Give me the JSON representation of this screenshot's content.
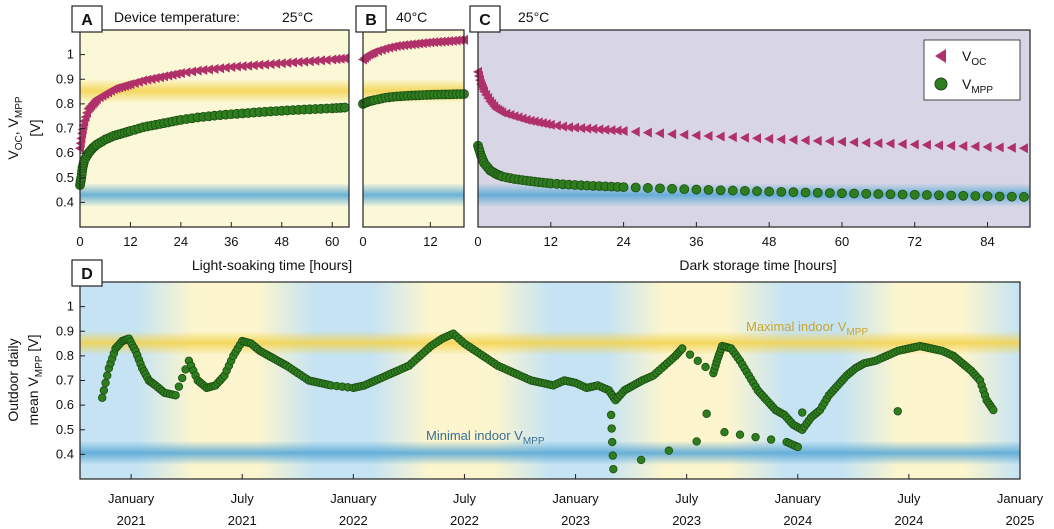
{
  "chart_data": [
    {
      "panel": "A",
      "type": "scatter",
      "title": "Device temperature:",
      "temperature": "25°C",
      "xlabel": "Light-soaking time [hours]",
      "ylabel": "V_OC, V_MPP [V]",
      "xlim": [
        0,
        64
      ],
      "ylim": [
        0.3,
        1.1
      ],
      "xticks": [
        "0",
        "12",
        "24",
        "36",
        "48",
        "60"
      ],
      "yticks": [
        "0.4",
        "0.5",
        "0.6",
        "0.7",
        "0.8",
        "0.9",
        "1"
      ],
      "series": [
        {
          "name": "V_OC",
          "color": "#b0306a",
          "marker": "triangle-left",
          "x": [
            0,
            0.5,
            1,
            2,
            3,
            4,
            6,
            8,
            10,
            12,
            15,
            18,
            21,
            24,
            28,
            32,
            36,
            40,
            44,
            48,
            52,
            56,
            60,
            63
          ],
          "y": [
            0.62,
            0.68,
            0.73,
            0.78,
            0.8,
            0.82,
            0.84,
            0.86,
            0.87,
            0.88,
            0.895,
            0.905,
            0.915,
            0.925,
            0.935,
            0.942,
            0.95,
            0.955,
            0.96,
            0.965,
            0.97,
            0.975,
            0.98,
            0.985
          ]
        },
        {
          "name": "V_MPP",
          "color": "#2e7d1e",
          "marker": "circle",
          "x": [
            0,
            0.3,
            0.6,
            1,
            2,
            3,
            4,
            6,
            8,
            10,
            12,
            15,
            18,
            21,
            24,
            28,
            32,
            36,
            40,
            44,
            48,
            52,
            56,
            60,
            63
          ],
          "y": [
            0.47,
            0.5,
            0.54,
            0.57,
            0.6,
            0.62,
            0.635,
            0.655,
            0.67,
            0.68,
            0.69,
            0.705,
            0.715,
            0.725,
            0.735,
            0.745,
            0.752,
            0.758,
            0.763,
            0.768,
            0.772,
            0.776,
            0.779,
            0.782,
            0.785
          ]
        }
      ],
      "bands": [
        {
          "name": "Maximal indoor V_MPP",
          "value": 0.85,
          "color": "#f3d24a"
        },
        {
          "name": "Minimal indoor V_MPP",
          "value": 0.415,
          "color": "#5aa9d6"
        }
      ]
    },
    {
      "panel": "B",
      "type": "scatter",
      "temperature": "40°C",
      "xlim": [
        0,
        18
      ],
      "ylim": [
        0.3,
        1.1
      ],
      "xticks": [
        "0",
        "12"
      ],
      "series": [
        {
          "name": "V_OC",
          "color": "#b0306a",
          "marker": "triangle-left",
          "x": [
            0,
            1,
            2,
            4,
            6,
            8,
            10,
            12,
            14,
            16,
            18
          ],
          "y": [
            0.98,
            1.0,
            1.01,
            1.025,
            1.035,
            1.04,
            1.045,
            1.05,
            1.053,
            1.056,
            1.06
          ]
        },
        {
          "name": "V_MPP",
          "color": "#2e7d1e",
          "marker": "circle",
          "x": [
            0,
            1,
            2,
            4,
            6,
            8,
            10,
            12,
            14,
            16,
            18
          ],
          "y": [
            0.8,
            0.81,
            0.815,
            0.825,
            0.83,
            0.833,
            0.835,
            0.837,
            0.838,
            0.839,
            0.84
          ]
        }
      ]
    },
    {
      "panel": "C",
      "type": "scatter",
      "temperature": "25°C",
      "xlabel": "Dark storage time [hours]",
      "xlim": [
        0,
        91
      ],
      "ylim": [
        0.3,
        1.1
      ],
      "xticks": [
        "0",
        "12",
        "24",
        "36",
        "48",
        "60",
        "72",
        "84"
      ],
      "legend": {
        "placement": "top-right",
        "entries": [
          "V_OC",
          "V_MPP"
        ]
      },
      "series": [
        {
          "name": "V_OC",
          "color": "#b0306a",
          "marker": "triangle-left",
          "x": [
            0,
            0.5,
            1,
            2,
            3,
            4,
            6,
            8,
            10,
            12,
            15,
            18,
            21,
            24,
            30,
            36,
            42,
            48,
            54,
            60,
            66,
            72,
            78,
            84,
            90
          ],
          "y": [
            0.93,
            0.88,
            0.85,
            0.81,
            0.78,
            0.765,
            0.75,
            0.735,
            0.725,
            0.715,
            0.705,
            0.7,
            0.695,
            0.69,
            0.68,
            0.672,
            0.665,
            0.658,
            0.652,
            0.646,
            0.64,
            0.635,
            0.63,
            0.625,
            0.62
          ]
        },
        {
          "name": "V_MPP",
          "color": "#2e7d1e",
          "marker": "circle",
          "x": [
            0,
            0.5,
            1,
            2,
            3,
            4,
            6,
            8,
            10,
            12,
            15,
            18,
            21,
            24,
            30,
            36,
            42,
            48,
            54,
            60,
            66,
            72,
            78,
            84,
            90
          ],
          "y": [
            0.63,
            0.59,
            0.56,
            0.53,
            0.515,
            0.505,
            0.495,
            0.488,
            0.482,
            0.477,
            0.472,
            0.468,
            0.465,
            0.462,
            0.457,
            0.452,
            0.448,
            0.444,
            0.44,
            0.437,
            0.434,
            0.431,
            0.428,
            0.425,
            0.422
          ]
        }
      ]
    },
    {
      "panel": "D",
      "type": "scatter",
      "ylabel": "Outdoor daily mean V_MPP [V]",
      "xlim": [
        2020.77,
        2025.0
      ],
      "ylim": [
        0.3,
        1.1
      ],
      "yticks": [
        "0.4",
        "0.5",
        "0.6",
        "0.7",
        "0.8",
        "0.9",
        "1"
      ],
      "xticks_month": [
        "January",
        "July",
        "January",
        "July",
        "January",
        "July",
        "January",
        "July",
        "January"
      ],
      "xticks_year": [
        "2021",
        "2021",
        "2022",
        "2022",
        "2023",
        "2023",
        "2024",
        "2024",
        "2025"
      ],
      "series": [
        {
          "name": "V_MPP",
          "color": "#2e7d1e",
          "marker": "circle",
          "x": [
            2020.87,
            2020.9,
            2020.93,
            2020.96,
            2020.99,
            2021.02,
            2021.05,
            2021.08,
            2021.11,
            2021.15,
            2021.2,
            2021.26,
            2021.3,
            2021.34,
            2021.38,
            2021.42,
            2021.46,
            2021.5,
            2021.54,
            2021.58,
            2021.62,
            2021.66,
            2021.7,
            2021.75,
            2021.8,
            2021.85,
            2021.9,
            2022.0,
            2022.05,
            2022.1,
            2022.15,
            2022.2,
            2022.25,
            2022.3,
            2022.35,
            2022.4,
            2022.45,
            2022.5,
            2022.55,
            2022.6,
            2022.65,
            2022.7,
            2022.75,
            2022.8,
            2022.85,
            2022.9,
            2022.95,
            2023.0,
            2023.05,
            2023.1,
            2023.15,
            2023.18,
            2023.22,
            2023.26,
            2023.3,
            2023.35,
            2023.4,
            2023.45,
            2023.48,
            2023.62,
            2023.64,
            2023.66,
            2023.7,
            2023.74,
            2023.78,
            2023.82,
            2023.86,
            2023.9,
            2023.94,
            2023.98,
            2024.02,
            2024.06,
            2024.1,
            2024.14,
            2024.18,
            2024.22,
            2024.26,
            2024.3,
            2024.35,
            2024.4,
            2024.45,
            2024.5,
            2024.55,
            2024.6,
            2024.65,
            2024.7,
            2024.74,
            2024.78,
            2024.82,
            2024.85,
            2024.88,
            2023.16,
            2023.17,
            2023.67,
            2023.95,
            2024.0
          ],
          "y": [
            0.63,
            0.75,
            0.83,
            0.86,
            0.87,
            0.82,
            0.75,
            0.7,
            0.68,
            0.65,
            0.64,
            0.78,
            0.7,
            0.67,
            0.68,
            0.72,
            0.8,
            0.86,
            0.85,
            0.82,
            0.8,
            0.78,
            0.76,
            0.73,
            0.7,
            0.69,
            0.68,
            0.67,
            0.68,
            0.7,
            0.72,
            0.74,
            0.76,
            0.8,
            0.84,
            0.87,
            0.89,
            0.85,
            0.82,
            0.79,
            0.76,
            0.74,
            0.72,
            0.7,
            0.69,
            0.68,
            0.7,
            0.69,
            0.67,
            0.68,
            0.66,
            0.62,
            0.66,
            0.68,
            0.7,
            0.72,
            0.76,
            0.8,
            0.83,
            0.73,
            0.79,
            0.84,
            0.83,
            0.78,
            0.72,
            0.66,
            0.62,
            0.58,
            0.56,
            0.52,
            0.5,
            0.55,
            0.58,
            0.64,
            0.68,
            0.72,
            0.75,
            0.77,
            0.78,
            0.8,
            0.82,
            0.83,
            0.84,
            0.83,
            0.82,
            0.8,
            0.77,
            0.74,
            0.7,
            0.62,
            0.58,
            0.56,
            0.34,
            0.49,
            0.45,
            0.43
          ]
        }
      ],
      "bands": [
        {
          "name": "Maximal indoor V_MPP",
          "value": 0.85,
          "color": "#f3d24a"
        },
        {
          "name": "Minimal indoor V_MPP",
          "value": 0.415,
          "color": "#5aa9d6"
        }
      ]
    }
  ],
  "labels": {
    "panel_a": "A",
    "panel_b": "B",
    "panel_c": "C",
    "panel_d": "D",
    "device_temperature": "Device temperature:",
    "temp_a": "25°C",
    "temp_b": "40°C",
    "temp_c": "25°C",
    "xlabel_ab": "Light-soaking time [hours]",
    "xlabel_c": "Dark storage time [hours]",
    "ylabel_top_main": "V",
    "ylabel_top_sub1": "OC",
    "ylabel_top_sep": ", V",
    "ylabel_top_sub2": "MPP",
    "ylabel_top_unit": "[V]",
    "ylabel_d_line1": "Outdoor daily",
    "ylabel_d_main": "mean V",
    "ylabel_d_sub": "MPP",
    "ylabel_d_unit": " [V]",
    "legend_voc_main": "V",
    "legend_voc_sub": "OC",
    "legend_vmpp_main": "V",
    "legend_vmpp_sub": "MPP",
    "max_indoor_main": "Maximal indoor V",
    "max_indoor_sub": "MPP",
    "min_indoor_main": "Minimal indoor V",
    "min_indoor_sub": "MPP"
  },
  "colors": {
    "voc": "#b0306a",
    "vmpp": "#2e7d1e",
    "vmpp_edge": "#1b4d12",
    "light_bg": "#fbf8d8",
    "dark_bg": "#d8d6e4",
    "max_band": "#f3d24a",
    "min_band": "#5aa9d6",
    "max_text": "#c9a52c",
    "min_text": "#3a6f96"
  }
}
